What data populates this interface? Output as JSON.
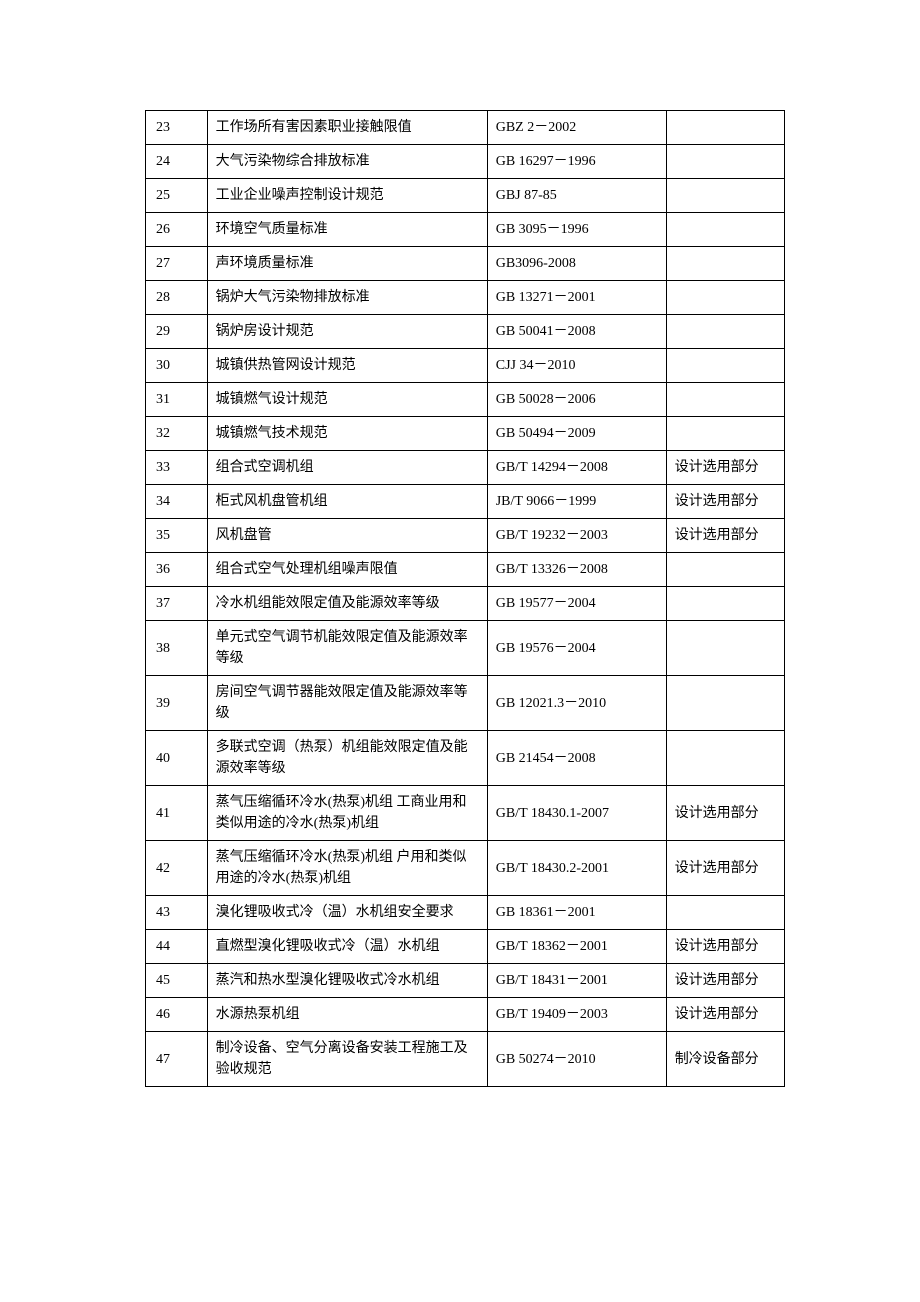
{
  "table": {
    "columns": {
      "num_width": 42,
      "name_width": 260,
      "code_width": 160,
      "remark_width": 100
    },
    "border_color": "#000000",
    "background_color": "#ffffff",
    "font_size": 14,
    "font_family": "SimSun",
    "rows": [
      {
        "num": "23",
        "name": "工作场所有害因素职业接触限值",
        "code": "GBZ 2－2002",
        "remark": ""
      },
      {
        "num": "24",
        "name": "大气污染物综合排放标准",
        "code": "GB 16297－1996",
        "remark": ""
      },
      {
        "num": "25",
        "name": "工业企业噪声控制设计规范",
        "code": "GBJ 87-85",
        "remark": ""
      },
      {
        "num": "26",
        "name": "环境空气质量标准",
        "code": "GB 3095－1996",
        "remark": ""
      },
      {
        "num": "27",
        "name": "声环境质量标准",
        "code": "GB3096-2008",
        "remark": ""
      },
      {
        "num": "28",
        "name": "锅炉大气污染物排放标准",
        "code": "GB 13271－2001",
        "remark": ""
      },
      {
        "num": "29",
        "name": "锅炉房设计规范",
        "code": "GB 50041－2008",
        "remark": ""
      },
      {
        "num": "30",
        "name": "城镇供热管网设计规范",
        "code": "CJJ 34－2010",
        "remark": ""
      },
      {
        "num": "31",
        "name": "城镇燃气设计规范",
        "code": "GB 50028－2006",
        "remark": ""
      },
      {
        "num": "32",
        "name": "城镇燃气技术规范",
        "code": "GB 50494－2009",
        "remark": ""
      },
      {
        "num": "33",
        "name": "组合式空调机组",
        "code": "GB/T 14294－2008",
        "remark": "设计选用部分"
      },
      {
        "num": "34",
        "name": "柜式风机盘管机组",
        "code": "JB/T 9066－1999",
        "remark": "设计选用部分"
      },
      {
        "num": "35",
        "name": "风机盘管",
        "code": "GB/T 19232－2003",
        "remark": "设计选用部分"
      },
      {
        "num": "36",
        "name": "组合式空气处理机组噪声限值",
        "code": "GB/T 13326－2008",
        "remark": ""
      },
      {
        "num": "37",
        "name": "冷水机组能效限定值及能源效率等级",
        "code": "GB 19577－2004",
        "remark": ""
      },
      {
        "num": "38",
        "name": "单元式空气调节机能效限定值及能源效率等级",
        "code": "GB 19576－2004",
        "remark": ""
      },
      {
        "num": "39",
        "name": "房间空气调节器能效限定值及能源效率等级",
        "code": "GB 12021.3－2010",
        "remark": ""
      },
      {
        "num": "40",
        "name": "多联式空调（热泵）机组能效限定值及能源效率等级",
        "code": "GB 21454－2008",
        "remark": ""
      },
      {
        "num": "41",
        "name": "蒸气压缩循环冷水(热泵)机组 工商业用和类似用途的冷水(热泵)机组",
        "code": "GB/T 18430.1-2007",
        "remark": "设计选用部分"
      },
      {
        "num": "42",
        "name": "蒸气压缩循环冷水(热泵)机组 户用和类似用途的冷水(热泵)机组",
        "code": "GB/T 18430.2-2001",
        "remark": "设计选用部分"
      },
      {
        "num": "43",
        "name": "溴化锂吸收式冷（温）水机组安全要求",
        "code": "GB 18361－2001",
        "remark": ""
      },
      {
        "num": "44",
        "name": "直燃型溴化锂吸收式冷（温）水机组",
        "code": "GB/T 18362－2001",
        "remark": "设计选用部分"
      },
      {
        "num": "45",
        "name": "蒸汽和热水型溴化锂吸收式冷水机组",
        "code": "GB/T 18431－2001",
        "remark": "设计选用部分"
      },
      {
        "num": "46",
        "name": "水源热泵机组",
        "code": "GB/T 19409－2003",
        "remark": "设计选用部分"
      },
      {
        "num": "47",
        "name": "制冷设备、空气分离设备安装工程施工及验收规范",
        "code": "GB 50274－2010",
        "remark": "制冷设备部分"
      }
    ]
  }
}
